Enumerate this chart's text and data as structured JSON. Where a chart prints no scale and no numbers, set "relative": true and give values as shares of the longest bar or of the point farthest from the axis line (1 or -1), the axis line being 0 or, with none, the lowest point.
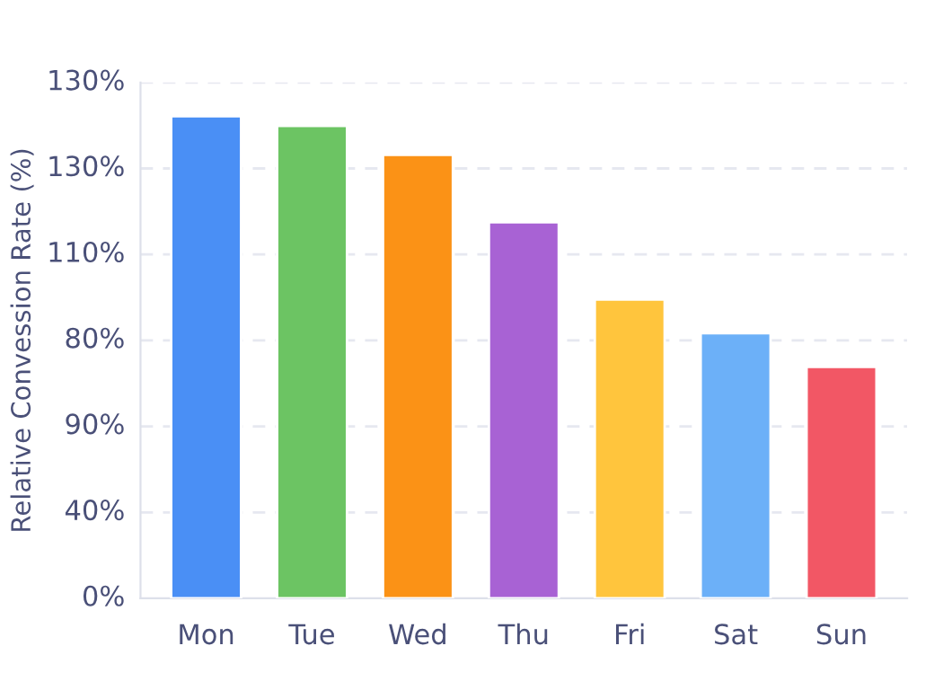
{
  "chart_data": {
    "type": "bar",
    "ylabel": "Relative Convession Rate (%)",
    "categories": [
      "Mon",
      "Tue",
      "Wed",
      "Thu",
      "Fri",
      "Sat",
      "Sun"
    ],
    "values": [
      1,
      0.98,
      0.92,
      0.78,
      0.62,
      0.55,
      0.48
    ],
    "colors": [
      "#4a8ff5",
      "#6cc463",
      "#fb9216",
      "#a862d4",
      "#ffc53d",
      "#6cb0f8",
      "#f25765"
    ],
    "relative": true,
    "annotations": [
      "0%",
      "40%",
      "90%",
      "80%",
      "110%",
      "130%",
      "130%"
    ],
    "grid": "y"
  }
}
